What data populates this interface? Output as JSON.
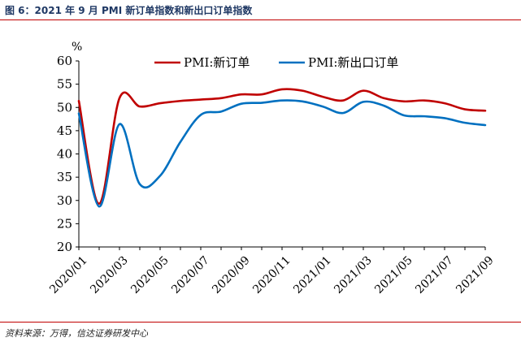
{
  "figure": {
    "title": "图 6：2021 年 9 月 PMI 新订单指数和新出口订单指数",
    "source": "资料来源：万得，信达证券研发中心"
  },
  "chart_data": {
    "type": "line",
    "unit_label": "%",
    "ylim": [
      20,
      60
    ],
    "yticks": [
      20,
      25,
      30,
      35,
      40,
      45,
      50,
      55,
      60
    ],
    "x_months": [
      "2020/01",
      "2020/02",
      "2020/03",
      "2020/04",
      "2020/05",
      "2020/06",
      "2020/07",
      "2020/08",
      "2020/09",
      "2020/10",
      "2020/11",
      "2020/12",
      "2021/01",
      "2021/02",
      "2021/03",
      "2021/04",
      "2021/05",
      "2021/06",
      "2021/07",
      "2021/08",
      "2021/09"
    ],
    "xtick_labels": [
      "2020/01",
      "2020/03",
      "2020/05",
      "2020/07",
      "2020/09",
      "2020/11",
      "2021/01",
      "2021/03",
      "2021/05",
      "2021/07",
      "2021/09"
    ],
    "legend_position": "top",
    "series": [
      {
        "name": "PMI:新订单",
        "color": "#c00000",
        "values": [
          51.4,
          29.3,
          52.0,
          50.2,
          50.9,
          51.4,
          51.7,
          52.0,
          52.8,
          52.8,
          53.9,
          53.6,
          52.3,
          51.5,
          53.6,
          52.0,
          51.3,
          51.5,
          50.9,
          49.6,
          49.3
        ]
      },
      {
        "name": "PMI:新出口订单",
        "color": "#0070c0",
        "values": [
          48.7,
          28.7,
          46.4,
          33.5,
          35.3,
          42.6,
          48.4,
          49.1,
          50.8,
          51.0,
          51.5,
          51.3,
          50.2,
          48.8,
          51.2,
          50.4,
          48.3,
          48.1,
          47.7,
          46.7,
          46.2
        ]
      }
    ]
  }
}
